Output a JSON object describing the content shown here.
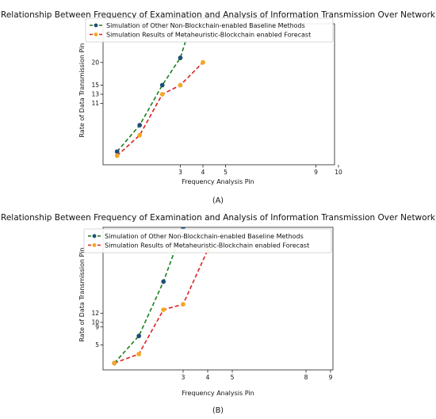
{
  "chart_data": [
    {
      "type": "line",
      "panel_label": "(A)",
      "title": "Relationship Between Frequency of Examination and Analysis of Information Transmission Over Network",
      "xlabel": "Frequency Analysis Pin",
      "ylabel": "Rate of Data Transmission Pin",
      "xticks": [
        3,
        4,
        5,
        9,
        10
      ],
      "yticks": [
        11,
        13,
        15,
        20
      ],
      "grid": false,
      "legend_position": "top",
      "series": [
        {
          "name": "Simulation of Other Non-Blockchain-enabled Baseline Methods",
          "color": "#1a7f1a",
          "marker_color": "#1f4e79",
          "x": [
            0.2,
            1.2,
            2.2,
            3.0,
            3.5
          ],
          "y": [
            0.4,
            6.2,
            15.0,
            21.0,
            29.0
          ]
        },
        {
          "name": "Simulation Results of Metaheuristic-Blockchain enabled Forecast",
          "color": "#e02020",
          "marker_color": "#f5a623",
          "x": [
            0.2,
            1.2,
            2.2,
            3.0,
            4.0
          ],
          "y": [
            -0.5,
            4.0,
            13.0,
            15.0,
            20.0
          ]
        }
      ]
    },
    {
      "type": "line",
      "panel_label": "(B)",
      "title": "Relationship Between Frequency of Examination and Analysis of Information Transmission Over Network",
      "xlabel": "Frequency Analysis Pin",
      "ylabel": "Rate of Data Transmission Pin",
      "xticks": [
        3,
        4,
        5,
        8,
        9
      ],
      "yticks": [
        5,
        9,
        10,
        12
      ],
      "grid": false,
      "legend_position": "top",
      "series": [
        {
          "name": "Simulation of Other Non-Blockchain-enabled Baseline Methods",
          "color": "#1a7f1a",
          "marker_color": "#1f4e79",
          "x": [
            0.2,
            1.2,
            2.2,
            3.0
          ],
          "y": [
            1.0,
            7.0,
            19.0,
            31.0
          ]
        },
        {
          "name": "Simulation Results of Metaheuristic-Blockchain enabled Forecast",
          "color": "#e02020",
          "marker_color": "#f5a623",
          "x": [
            0.2,
            1.2,
            2.2,
            3.0,
            4.0
          ],
          "y": [
            1.0,
            3.0,
            12.8,
            14.0,
            26.0
          ]
        }
      ]
    }
  ]
}
